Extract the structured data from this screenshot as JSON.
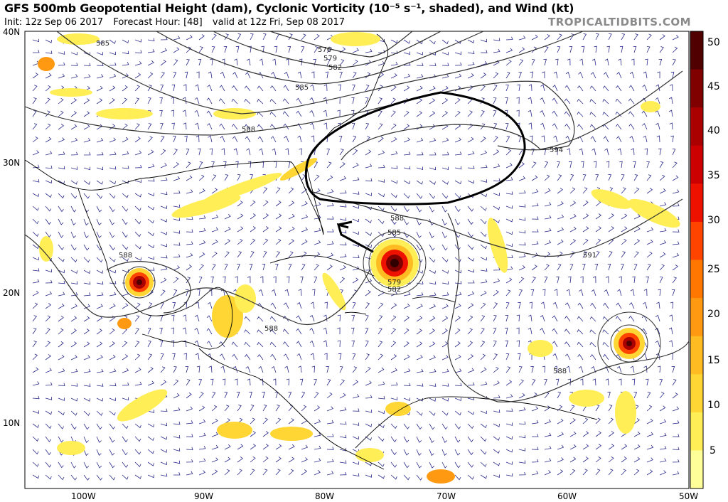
{
  "header": {
    "title": "GFS 500mb Geopotential Height (dam), Cyclonic Vorticity (10⁻⁵ s⁻¹, shaded), and Wind (kt)",
    "init": "Init: 12z Sep 06 2017",
    "forecast_hour": "Forecast Hour: [48]",
    "valid": "valid at 12z Fri, Sep 08 2017",
    "site": "TROPICALTIDBITS.COM"
  },
  "axes": {
    "lat_labels": [
      "40N",
      "30N",
      "20N",
      "10N"
    ],
    "lon_labels": [
      "100W",
      "90W",
      "80W",
      "70W",
      "60W",
      "50W"
    ]
  },
  "colorbar": {
    "ticks": [
      "50",
      "45",
      "40",
      "35",
      "30",
      "25",
      "20",
      "15",
      "10",
      "5"
    ],
    "colors": [
      "#ffff99",
      "#ffee55",
      "#ffd633",
      "#ffbb22",
      "#ff9911",
      "#ff7700",
      "#ff4400",
      "#ee1100",
      "#cc0000",
      "#aa0000",
      "#800000",
      "#500000"
    ]
  },
  "contour_labels": [
    "585",
    "576",
    "579",
    "582",
    "585",
    "588",
    "594",
    "588",
    "585",
    "579",
    "582",
    "591",
    "588",
    "588",
    "588"
  ],
  "colors": {
    "background": "#ffffff",
    "vorticity_low": "#ffee55",
    "vorticity_high": "#800000",
    "wind_barb": "#2a2a8a",
    "contour": "#333333",
    "annotation": "#000000"
  }
}
